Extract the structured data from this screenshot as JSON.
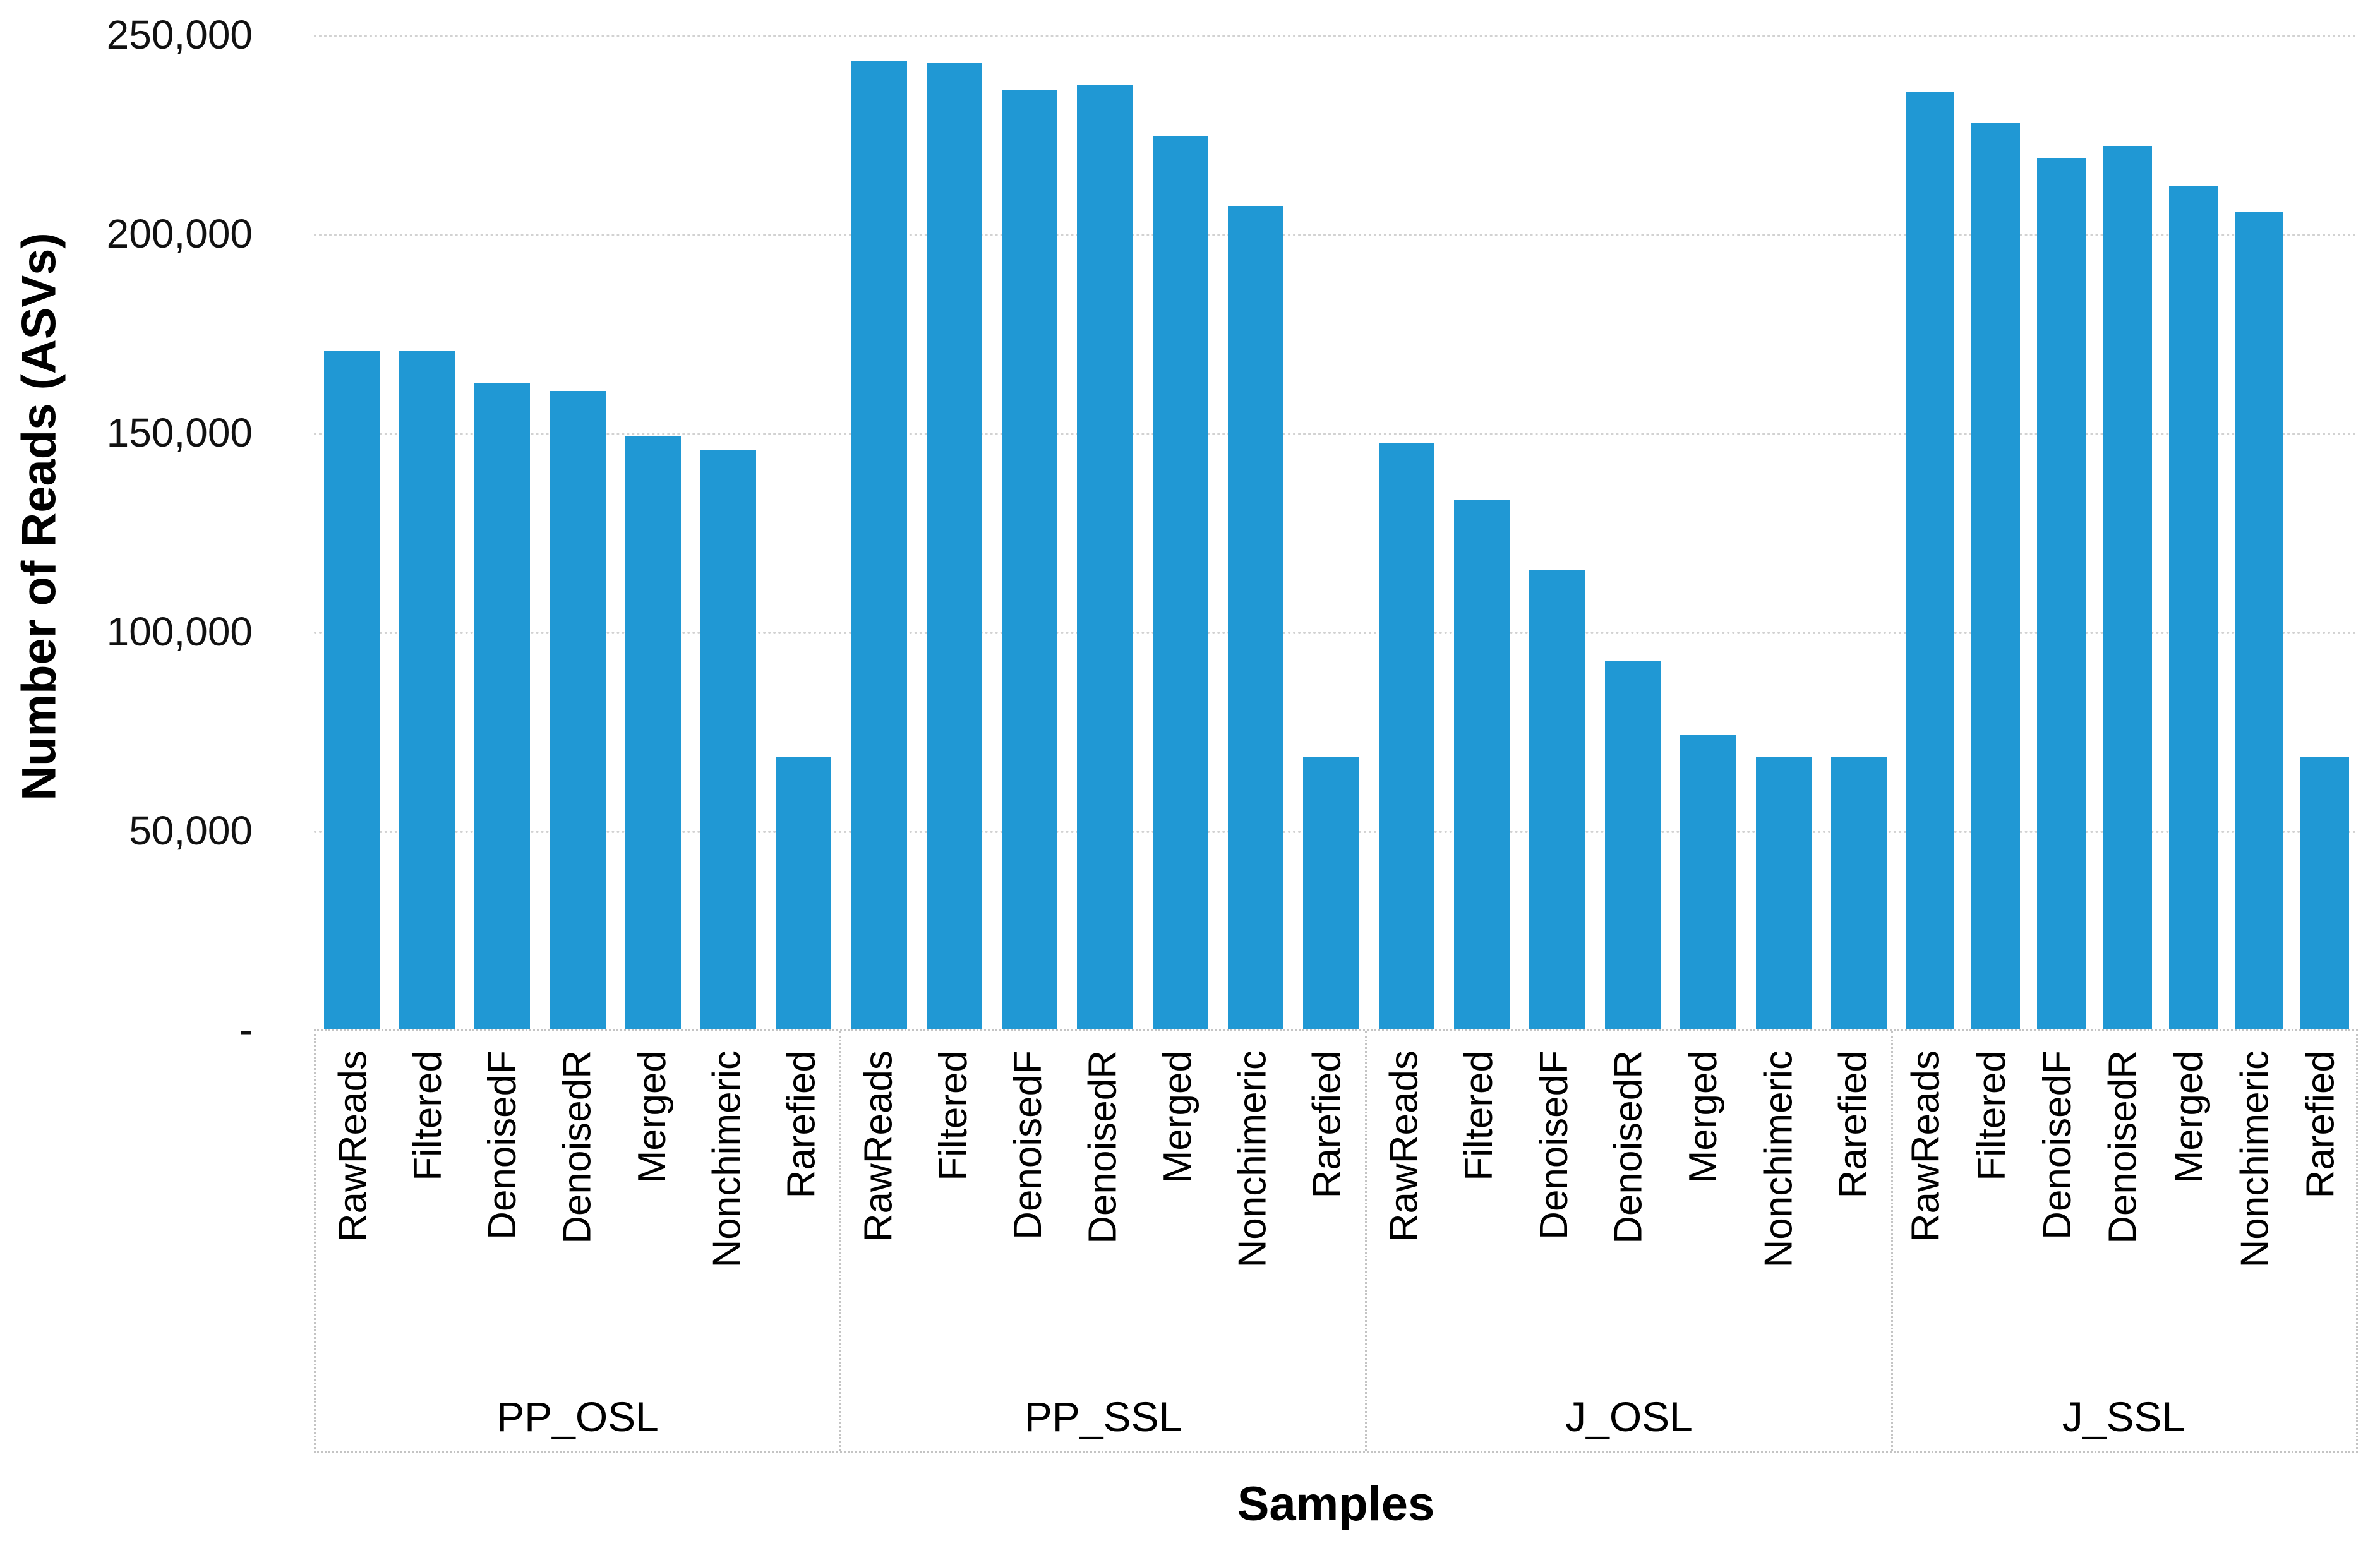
{
  "yaxis": {
    "title": "Number of Reads (ASVs)",
    "tick_labels": [
      "250,000",
      "200,000",
      "150,000",
      "100,000",
      "50,000",
      "-"
    ],
    "tick_values": [
      250000,
      200000,
      150000,
      100000,
      50000,
      0
    ]
  },
  "xaxis": {
    "title": "Samples",
    "group_labels": [
      "PP_OSL",
      "PP_SSL",
      "J_OSL",
      "J_SSL"
    ],
    "category_labels": [
      "RawReads",
      "Filtered",
      "DenoisedF",
      "DenoisedR",
      "Merged",
      "Nonchimeric",
      "Rarefied"
    ]
  },
  "colors": {
    "bar": "#2098D4",
    "gridline": "#D2D2D2",
    "axis_border": "#C4C4C4",
    "text": "#000000"
  },
  "chart_data": {
    "type": "bar",
    "title": "",
    "xlabel": "Samples",
    "ylabel": "Number of Reads (ASVs)",
    "ylim": [
      0,
      250000
    ],
    "grid": true,
    "legend": "none",
    "categories": [
      "RawReads",
      "Filtered",
      "DenoisedF",
      "DenoisedR",
      "Merged",
      "Nonchimeric",
      "Rarefied"
    ],
    "series": [
      {
        "name": "PP_OSL",
        "values": [
          170500,
          170500,
          162500,
          160500,
          149000,
          145500,
          68500
        ]
      },
      {
        "name": "PP_SSL",
        "values": [
          243500,
          243000,
          236000,
          237500,
          224500,
          207000,
          68500
        ]
      },
      {
        "name": "J_OSL",
        "values": [
          147500,
          133000,
          115500,
          92500,
          74000,
          68500,
          68500
        ]
      },
      {
        "name": "J_SSL",
        "values": [
          235500,
          228000,
          219000,
          222000,
          212000,
          205500,
          68500
        ]
      }
    ]
  }
}
